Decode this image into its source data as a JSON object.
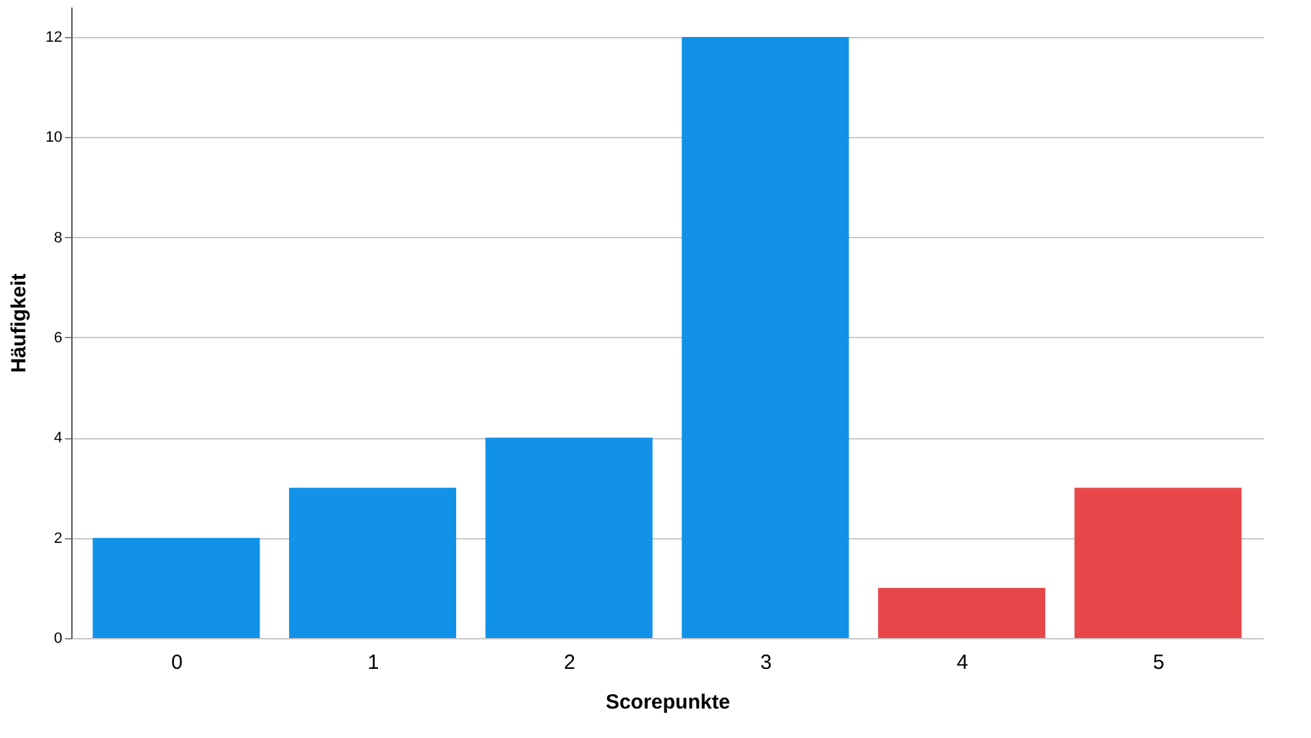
{
  "chart_data": {
    "type": "bar",
    "xlabel": "Scorepunkte",
    "ylabel": "Häufigkeit",
    "categories": [
      "0",
      "1",
      "2",
      "3",
      "4",
      "5"
    ],
    "values": [
      2,
      3,
      4,
      12,
      1,
      3
    ],
    "colors": [
      "#1192e8",
      "#1192e8",
      "#1192e8",
      "#1192e8",
      "#e8474a",
      "#e8474a"
    ],
    "ylim": [
      0,
      12.6
    ],
    "yticks": [
      0,
      2,
      4,
      6,
      8,
      10,
      12
    ],
    "grid": "y"
  }
}
